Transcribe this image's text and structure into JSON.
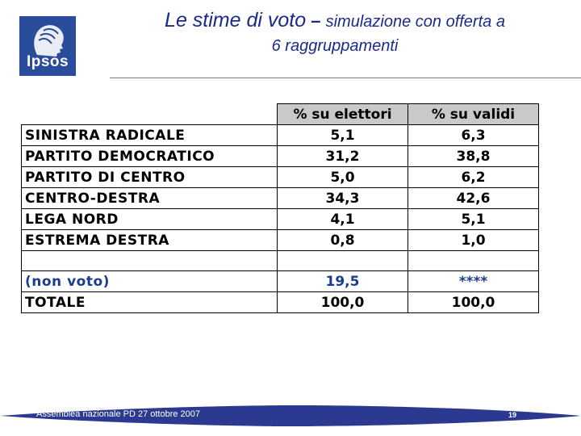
{
  "logo": {
    "text": "Ipsos"
  },
  "title": {
    "main": "Le stime di voto",
    "dash": " – ",
    "sub": "simulazione con offerta a",
    "line2": "6 raggruppamenti"
  },
  "table": {
    "headers": [
      "% su elettori",
      "% su validi"
    ],
    "rows": [
      {
        "name": "SINISTRA RADICALE",
        "elettori": "5,1",
        "validi": "6,3"
      },
      {
        "name": "PARTITO DEMOCRATICO",
        "elettori": "31,2",
        "validi": "38,8"
      },
      {
        "name": "PARTITO DI CENTRO",
        "elettori": "5,0",
        "validi": "6,2"
      },
      {
        "name": "CENTRO-DESTRA",
        "elettori": "34,3",
        "validi": "42,6"
      },
      {
        "name": "LEGA NORD",
        "elettori": "4,1",
        "validi": "5,1"
      },
      {
        "name": "ESTREMA DESTRA",
        "elettori": "0,8",
        "validi": "1,0"
      }
    ],
    "nonvoto": {
      "name": "(non voto)",
      "elettori": "19,5",
      "validi": "****"
    },
    "totale": {
      "name": "TOTALE",
      "elettori": "100,0",
      "validi": "100,0"
    }
  },
  "footer": {
    "text": "Assemblea nazionale PD 27 ottobre 2007",
    "page": "19"
  },
  "colors": {
    "title": "#1a2a8c",
    "logo_bg": "#2a4d9b",
    "header_bg": "#c9c9c9",
    "footer_bar": "#2b3990",
    "nonvoto_text": "#1a3c8f"
  }
}
